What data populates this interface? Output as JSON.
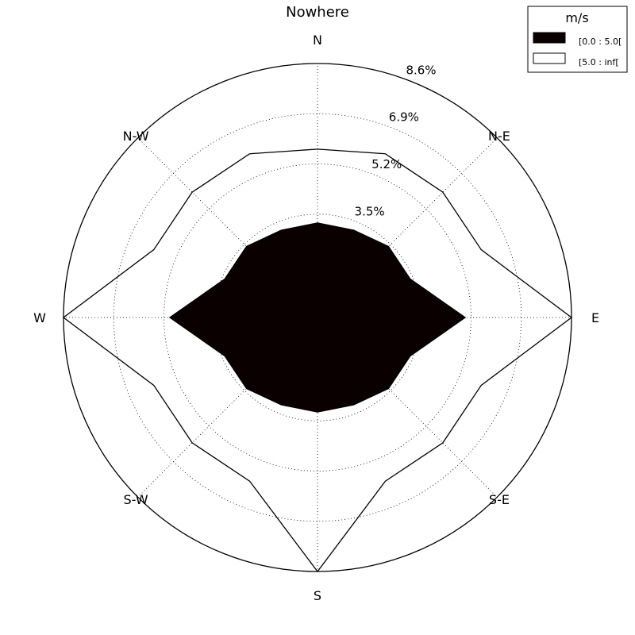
{
  "chart_data": {
    "type": "radar",
    "title": "Nowhere",
    "unit": "%",
    "directions": [
      "N",
      "N-E",
      "E",
      "S-E",
      "S",
      "S-W",
      "W",
      "N-W"
    ],
    "ring_labels": [
      "3.5%",
      "5.2%",
      "6.9%",
      "8.6%"
    ],
    "ring_values": [
      3.5,
      5.2,
      6.9,
      8.6
    ],
    "r_max": 8.6,
    "theta_count": 16,
    "grid": true,
    "legend": {
      "title": "m/s",
      "position": "top-right",
      "entries": [
        {
          "label": "[0.0 : 5.0[",
          "color": "#0b0000"
        },
        {
          "label": "[5.0 : inf[",
          "color": "#ffffff"
        }
      ]
    },
    "series": [
      {
        "name": "[0.0 : 5.0[",
        "fill": "#0b0000",
        "values": [
          3.2,
          3.2,
          3.4,
          3.4,
          5.0,
          3.4,
          3.4,
          3.2,
          3.2,
          3.2,
          3.4,
          3.4,
          5.0,
          3.4,
          3.4,
          3.2
        ]
      },
      {
        "name": "[5.0 : inf[",
        "fill": "#ffffff",
        "values": [
          5.7,
          6.0,
          6.0,
          6.0,
          8.6,
          6.0,
          6.0,
          6.0,
          8.6,
          6.0,
          6.0,
          6.0,
          8.6,
          6.0,
          6.0,
          6.0
        ]
      }
    ]
  }
}
